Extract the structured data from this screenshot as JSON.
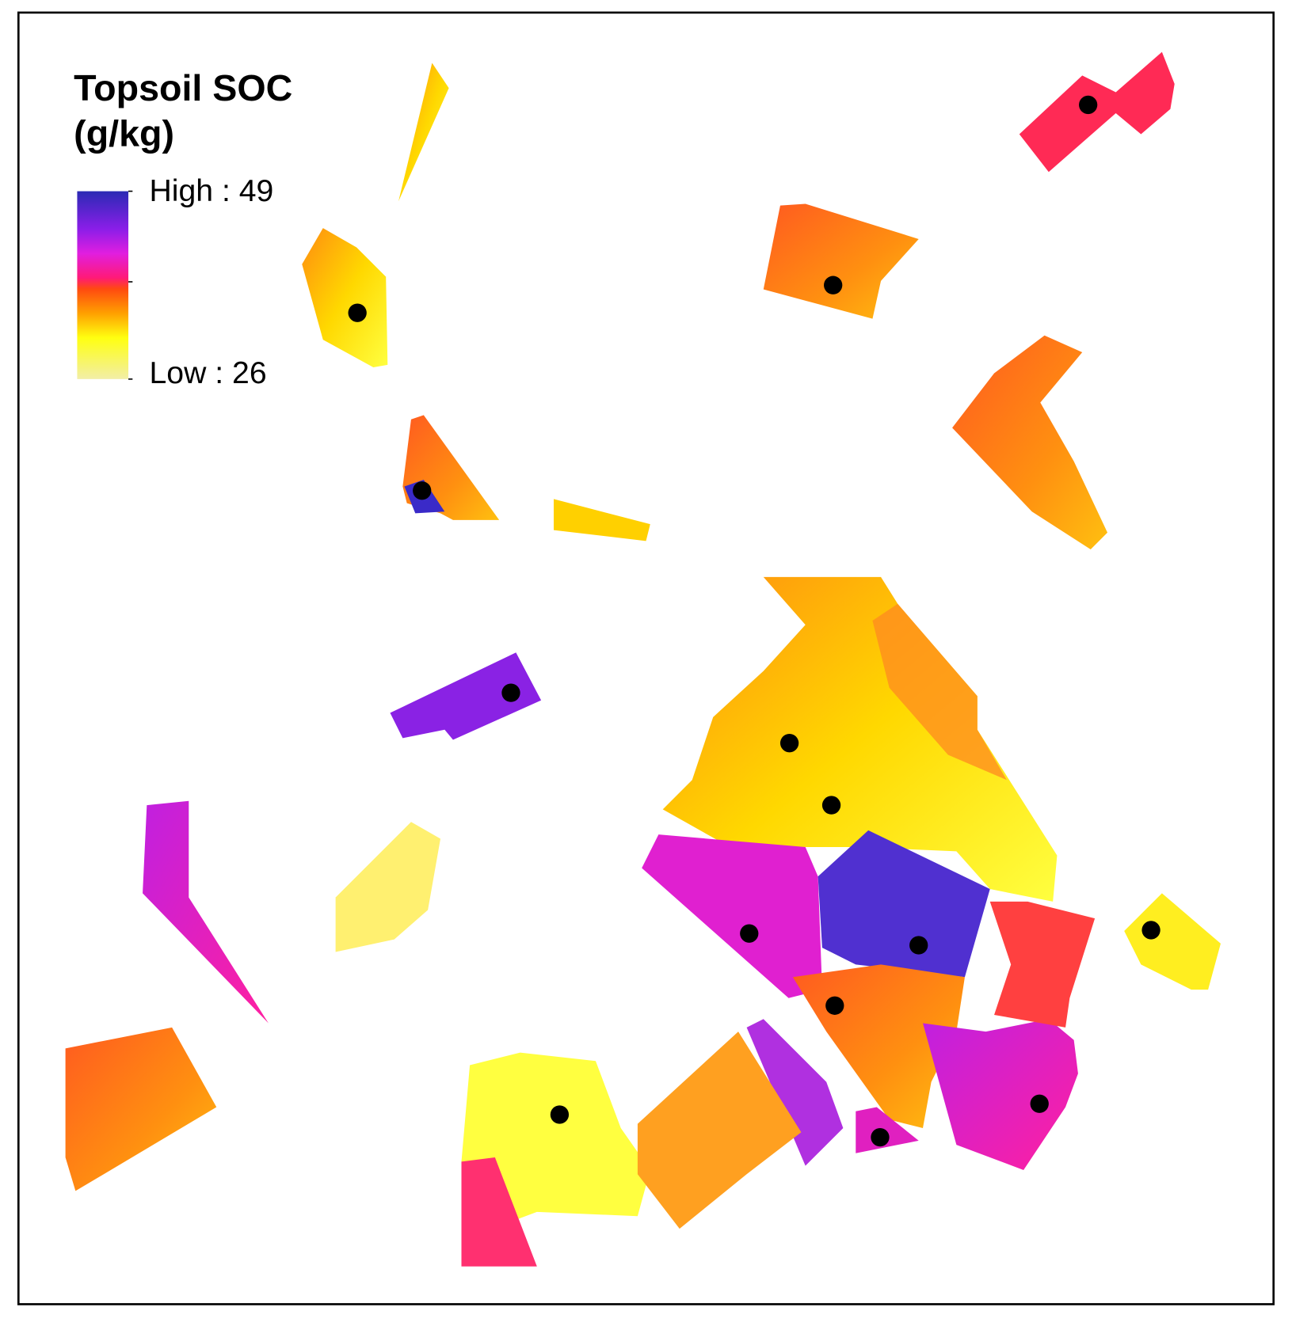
{
  "legend": {
    "title": [
      "Topsoil SOC",
      "(g/kg)"
    ],
    "high_label": "High : 49",
    "low_label": "Low : 26"
  }
}
